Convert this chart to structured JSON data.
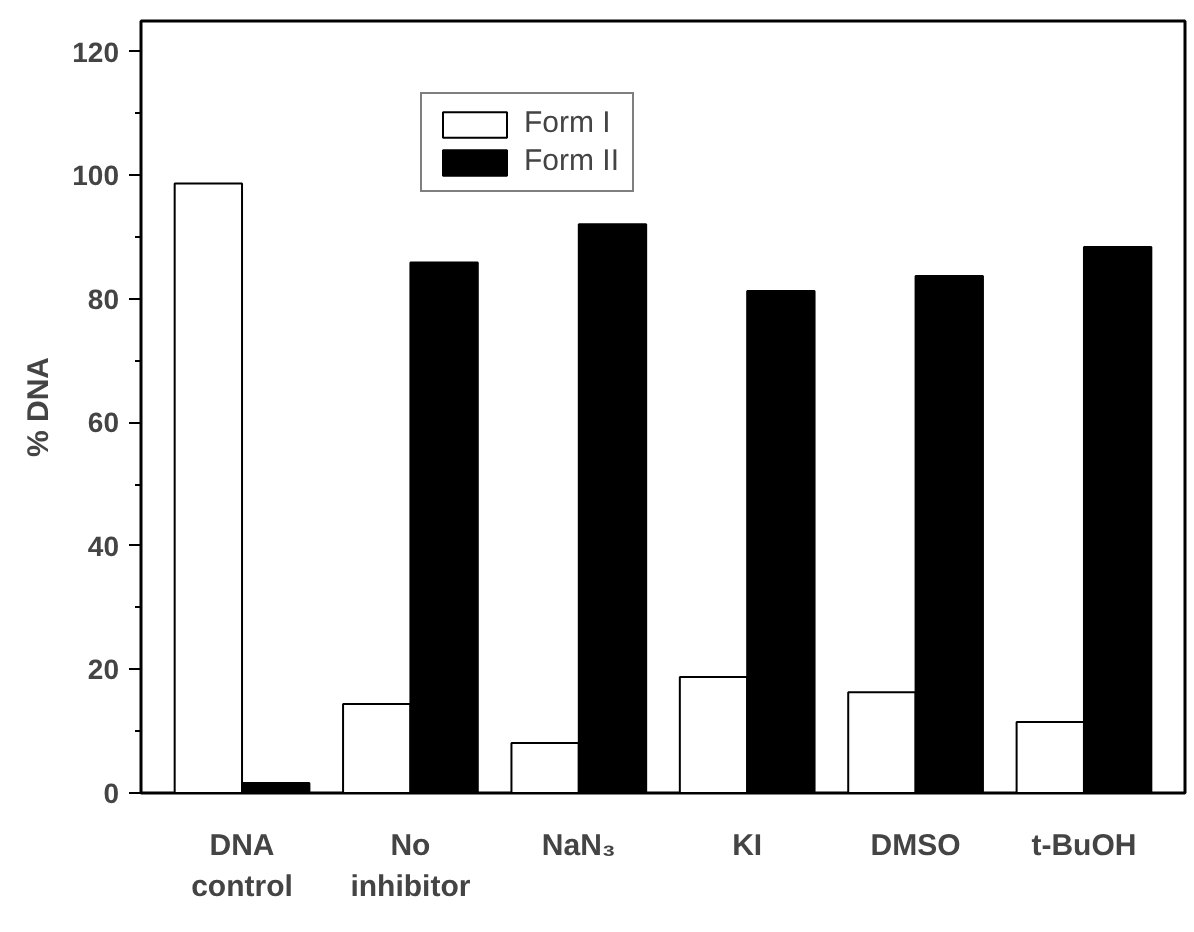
{
  "chart_data": {
    "type": "bar",
    "ylabel": "% DNA",
    "categories": [
      "DNA control",
      "No inhibitor",
      "NaN₃",
      "KI",
      "DMSO",
      "t-BuOH"
    ],
    "series": [
      {
        "name": "Form I",
        "color": "#ffffff",
        "values": [
          98.7,
          14.4,
          8.1,
          18.8,
          16.3,
          11.5
        ]
      },
      {
        "name": "Form II",
        "color": "#000000",
        "values": [
          1.6,
          85.9,
          92.1,
          81.3,
          83.7,
          88.4
        ]
      }
    ],
    "ylim": [
      0,
      125
    ],
    "yticks": [
      0,
      {
        "value": 10,
        "label": null
      },
      20,
      {
        "value": 30,
        "label": null
      },
      40,
      {
        "value": 50,
        "label": null
      },
      60,
      {
        "value": 70,
        "label": null
      },
      80,
      {
        "value": 90,
        "label": null
      },
      100,
      {
        "value": 110,
        "label": null
      },
      120
    ],
    "grid": false,
    "legend": "top"
  }
}
